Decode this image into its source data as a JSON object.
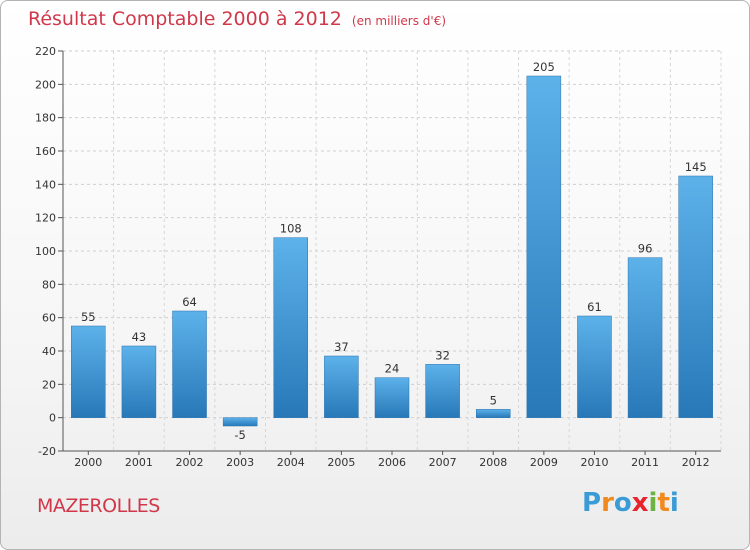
{
  "title": "Résultat Comptable 2000 à 2012",
  "subtitle": "(en milliers d'€)",
  "commune": "MAZEROLLES",
  "logo": {
    "letters": [
      "P",
      "r",
      "o",
      "x",
      "i",
      "t",
      "i"
    ],
    "colors": [
      "#3a9bd6",
      "#f08a1e",
      "#3a9bd6",
      "#e8232b",
      "#6db33f",
      "#f08a1e",
      "#3a9bd6"
    ]
  },
  "colors": {
    "accent": "#d0384a",
    "bar_light": "#5aafe8",
    "bar_dark": "#2a7cbc"
  },
  "chart_data": {
    "type": "bar",
    "title": "Résultat Comptable 2000 à 2012",
    "subtitle": "(en milliers d'€)",
    "categories": [
      "2000",
      "2001",
      "2002",
      "2003",
      "2004",
      "2005",
      "2006",
      "2007",
      "2008",
      "2009",
      "2010",
      "2011",
      "2012"
    ],
    "values": [
      55,
      43,
      64,
      -5,
      108,
      37,
      24,
      32,
      5,
      205,
      61,
      96,
      145
    ],
    "ylim": [
      -20,
      220
    ],
    "yticks": [
      -20,
      0,
      20,
      40,
      60,
      80,
      100,
      120,
      140,
      160,
      180,
      200,
      220
    ],
    "xlabel": "",
    "ylabel": "",
    "grid": true
  }
}
